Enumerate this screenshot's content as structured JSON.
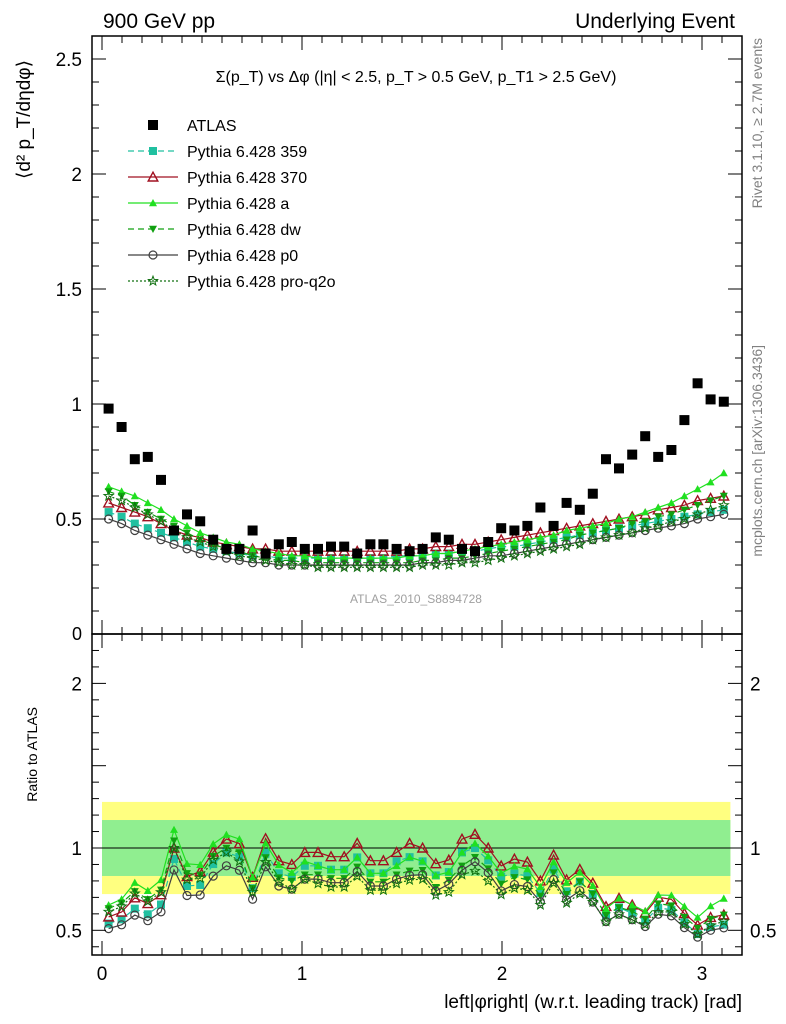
{
  "header": {
    "left": "900 GeV pp",
    "right": "Underlying Event"
  },
  "side_labels": {
    "top": "Rivet 3.1.10, ≥ 2.7M events",
    "bottom": "mcplots.cern.ch [arXiv:1306.3436]"
  },
  "chart_data": {
    "type": "scatter",
    "title": "Σ(p_T) vs Δφ (|η| < 2.5, p_T > 0.5 GeV, p_T1 > 2.5 GeV)",
    "watermark": "ATLAS_2010_S8894728",
    "xlabel": "left|φright| (w.r.t. leading track) [rad]",
    "ylabel": "⟨d² p_T/dηdφ⟩",
    "ratio_ylabel": "Ratio to ATLAS",
    "xlim": [
      -0.05,
      3.2
    ],
    "ylim": [
      0,
      2.6
    ],
    "ratio_ylim": [
      0.35,
      2.3
    ],
    "x_ticks": [
      "0",
      "1",
      "2",
      "3"
    ],
    "y_ticks": [
      "0.5",
      "1",
      "1.5",
      "2",
      "2.5"
    ],
    "ratio_y_ticks": [
      "0.5",
      "1",
      "2"
    ],
    "grid": false,
    "legend_position": "top-left",
    "x": [
      0.033,
      0.098,
      0.164,
      0.229,
      0.295,
      0.36,
      0.425,
      0.491,
      0.556,
      0.622,
      0.687,
      0.753,
      0.818,
      0.884,
      0.949,
      1.014,
      1.08,
      1.145,
      1.211,
      1.276,
      1.342,
      1.407,
      1.473,
      1.538,
      1.603,
      1.669,
      1.734,
      1.8,
      1.865,
      1.931,
      1.996,
      2.062,
      2.127,
      2.192,
      2.258,
      2.323,
      2.389,
      2.454,
      2.52,
      2.585,
      2.651,
      2.716,
      2.781,
      2.847,
      2.912,
      2.978,
      3.043,
      3.109
    ],
    "data": {
      "name": "ATLAS",
      "values": [
        0.98,
        0.9,
        0.76,
        0.77,
        0.67,
        0.45,
        0.52,
        0.49,
        0.41,
        0.37,
        0.37,
        0.45,
        0.35,
        0.39,
        0.4,
        0.37,
        0.37,
        0.38,
        0.38,
        0.35,
        0.39,
        0.39,
        0.37,
        0.36,
        0.37,
        0.42,
        0.41,
        0.37,
        0.36,
        0.4,
        0.46,
        0.45,
        0.47,
        0.55,
        0.47,
        0.57,
        0.54,
        0.61,
        0.76,
        0.72,
        0.78,
        0.86,
        0.77,
        0.8,
        0.93,
        1.09,
        1.02,
        1.01
      ]
    },
    "series": [
      {
        "name": "Pythia 6.428 359",
        "color": "#20c0a0",
        "marker": "square-filled",
        "dash": "6,4",
        "values": [
          0.53,
          0.51,
          0.48,
          0.46,
          0.44,
          0.42,
          0.4,
          0.38,
          0.37,
          0.36,
          0.35,
          0.34,
          0.34,
          0.33,
          0.33,
          0.33,
          0.33,
          0.33,
          0.33,
          0.33,
          0.33,
          0.33,
          0.34,
          0.34,
          0.34,
          0.35,
          0.35,
          0.36,
          0.36,
          0.37,
          0.38,
          0.38,
          0.39,
          0.4,
          0.41,
          0.42,
          0.43,
          0.44,
          0.45,
          0.46,
          0.47,
          0.48,
          0.49,
          0.5,
          0.51,
          0.52,
          0.53,
          0.54
        ]
      },
      {
        "name": "Pythia 6.428 370",
        "color": "#a01020",
        "marker": "triangle-open",
        "dash": "",
        "values": [
          0.57,
          0.55,
          0.53,
          0.51,
          0.48,
          0.45,
          0.43,
          0.42,
          0.4,
          0.39,
          0.38,
          0.37,
          0.37,
          0.36,
          0.36,
          0.36,
          0.36,
          0.36,
          0.36,
          0.36,
          0.36,
          0.36,
          0.36,
          0.37,
          0.37,
          0.38,
          0.38,
          0.39,
          0.39,
          0.4,
          0.41,
          0.42,
          0.43,
          0.44,
          0.45,
          0.46,
          0.47,
          0.48,
          0.49,
          0.5,
          0.51,
          0.52,
          0.54,
          0.55,
          0.56,
          0.58,
          0.59,
          0.6
        ]
      },
      {
        "name": "Pythia 6.428 a",
        "color": "#20e020",
        "marker": "triangle-filled",
        "dash": "",
        "values": [
          0.64,
          0.62,
          0.6,
          0.57,
          0.54,
          0.5,
          0.47,
          0.44,
          0.42,
          0.4,
          0.39,
          0.37,
          0.36,
          0.35,
          0.34,
          0.34,
          0.33,
          0.33,
          0.33,
          0.33,
          0.33,
          0.33,
          0.33,
          0.34,
          0.34,
          0.35,
          0.35,
          0.36,
          0.37,
          0.38,
          0.39,
          0.4,
          0.41,
          0.42,
          0.43,
          0.45,
          0.46,
          0.47,
          0.48,
          0.5,
          0.51,
          0.53,
          0.55,
          0.57,
          0.6,
          0.63,
          0.66,
          0.7
        ]
      },
      {
        "name": "Pythia 6.428 dw",
        "color": "#10a010",
        "marker": "triangledown-filled",
        "dash": "6,4",
        "values": [
          0.62,
          0.6,
          0.56,
          0.53,
          0.5,
          0.47,
          0.44,
          0.41,
          0.39,
          0.37,
          0.36,
          0.34,
          0.33,
          0.32,
          0.32,
          0.31,
          0.31,
          0.31,
          0.31,
          0.31,
          0.31,
          0.31,
          0.31,
          0.31,
          0.32,
          0.32,
          0.33,
          0.33,
          0.34,
          0.35,
          0.36,
          0.37,
          0.38,
          0.39,
          0.4,
          0.41,
          0.43,
          0.44,
          0.45,
          0.46,
          0.48,
          0.49,
          0.51,
          0.52,
          0.54,
          0.56,
          0.58,
          0.6
        ]
      },
      {
        "name": "Pythia 6.428 p0",
        "color": "#404040",
        "marker": "circle-open",
        "dash": "",
        "values": [
          0.5,
          0.48,
          0.45,
          0.43,
          0.41,
          0.39,
          0.37,
          0.35,
          0.34,
          0.33,
          0.32,
          0.31,
          0.31,
          0.3,
          0.3,
          0.3,
          0.3,
          0.3,
          0.3,
          0.3,
          0.3,
          0.3,
          0.3,
          0.3,
          0.31,
          0.31,
          0.32,
          0.32,
          0.33,
          0.34,
          0.34,
          0.35,
          0.36,
          0.37,
          0.38,
          0.39,
          0.4,
          0.41,
          0.42,
          0.43,
          0.44,
          0.45,
          0.46,
          0.47,
          0.48,
          0.5,
          0.51,
          0.52
        ]
      },
      {
        "name": "Pythia 6.428 pro-q2o",
        "color": "#107010",
        "marker": "star",
        "dash": "2,2",
        "values": [
          0.6,
          0.58,
          0.55,
          0.52,
          0.49,
          0.45,
          0.42,
          0.4,
          0.38,
          0.36,
          0.34,
          0.33,
          0.32,
          0.31,
          0.3,
          0.3,
          0.29,
          0.29,
          0.29,
          0.29,
          0.29,
          0.29,
          0.29,
          0.29,
          0.3,
          0.3,
          0.3,
          0.31,
          0.31,
          0.32,
          0.33,
          0.34,
          0.35,
          0.36,
          0.37,
          0.38,
          0.39,
          0.41,
          0.42,
          0.43,
          0.44,
          0.46,
          0.47,
          0.49,
          0.5,
          0.52,
          0.54,
          0.56
        ]
      }
    ],
    "uncertainty_bands": {
      "total": {
        "color": "#ffff80",
        "low": 0.72,
        "high": 1.28
      },
      "stat": {
        "color": "#90ee90",
        "low": 0.83,
        "high": 1.17
      }
    }
  }
}
